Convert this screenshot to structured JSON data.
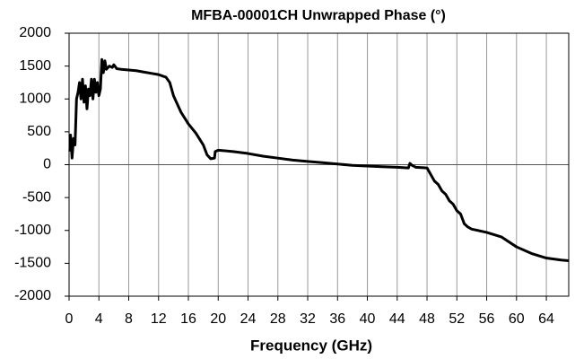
{
  "chart_data": {
    "type": "line",
    "title": "MFBA-00001CH Unwrapped Phase (°)",
    "x_label": "Frequency  (GHz)",
    "xlim": [
      0,
      67
    ],
    "xticks": [
      0,
      4,
      8,
      12,
      16,
      20,
      24,
      28,
      32,
      36,
      40,
      44,
      48,
      52,
      56,
      60,
      64
    ],
    "ylim": [
      -2000,
      2000
    ],
    "yticks": [
      -2000,
      -1500,
      -1000,
      -500,
      0,
      500,
      1000,
      1500,
      2000
    ],
    "grid": true,
    "series": [
      {
        "color": "#000000",
        "x": [
          0.1,
          0.2,
          0.4,
          0.6,
          0.8,
          1,
          1.2,
          1.4,
          1.6,
          1.8,
          2,
          2.2,
          2.4,
          2.6,
          2.8,
          3,
          3.2,
          3.4,
          3.6,
          3.8,
          4,
          4.2,
          4.4,
          4.6,
          4.8,
          5,
          5.4,
          5.8,
          6,
          6.4,
          7,
          8,
          9,
          10,
          11,
          12,
          13,
          13.5,
          14,
          15,
          16,
          17,
          18,
          18.5,
          19,
          19.5,
          19.6,
          20,
          22,
          24,
          26,
          28,
          30,
          32,
          34,
          36,
          38,
          40,
          42,
          44,
          45.5,
          45.7,
          46,
          46.5,
          48,
          48.5,
          49,
          49.5,
          50,
          50.5,
          51,
          51.5,
          52,
          52.5,
          53,
          53.5,
          54,
          56,
          58,
          60,
          62,
          64,
          66,
          67
        ],
        "values": [
          200,
          450,
          100,
          400,
          300,
          1000,
          1100,
          1250,
          1000,
          1300,
          950,
          1200,
          850,
          1150,
          1050,
          1300,
          1000,
          1300,
          1100,
          1250,
          1050,
          1150,
          1600,
          1400,
          1580,
          1450,
          1500,
          1480,
          1520,
          1460,
          1450,
          1440,
          1430,
          1410,
          1390,
          1370,
          1330,
          1250,
          1050,
          800,
          620,
          480,
          300,
          150,
          90,
          100,
          200,
          220,
          200,
          170,
          130,
          100,
          70,
          50,
          30,
          10,
          -10,
          -20,
          -30,
          -40,
          -50,
          20,
          -10,
          -40,
          -50,
          -150,
          -250,
          -300,
          -400,
          -450,
          -550,
          -600,
          -700,
          -750,
          -900,
          -950,
          -980,
          -1030,
          -1100,
          -1250,
          -1350,
          -1420,
          -1450,
          -1460
        ]
      }
    ]
  }
}
